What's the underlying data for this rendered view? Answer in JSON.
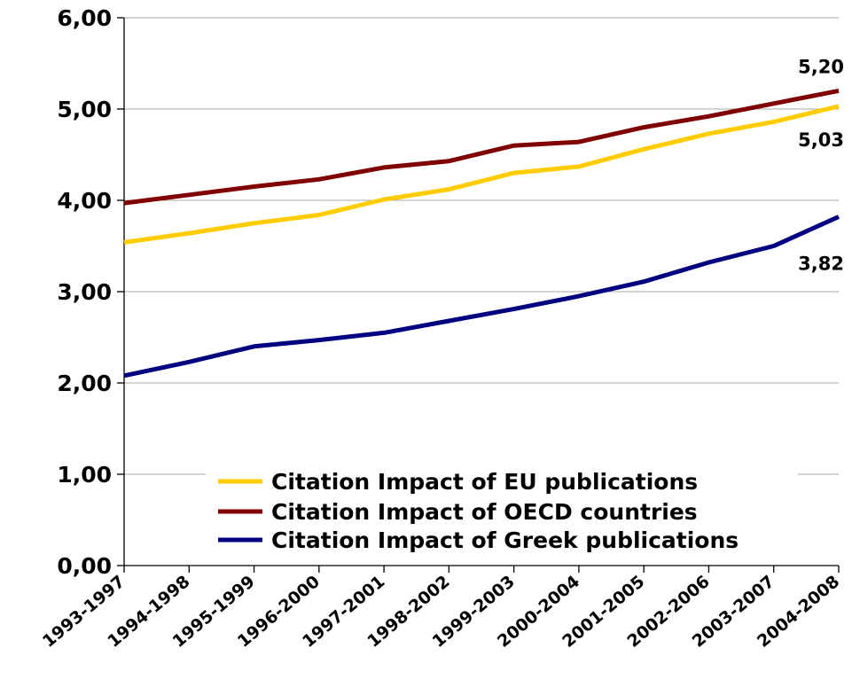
{
  "chart_data": {
    "type": "line",
    "title": "",
    "xlabel": "",
    "ylabel": "",
    "categories": [
      "1993-1997",
      "1994-1998",
      "1995-1999",
      "1996-2000",
      "1997-2001",
      "1998-2002",
      "1999-2003",
      "2000-2004",
      "2001-2005",
      "2002-2006",
      "2003-2007",
      "2004-2008"
    ],
    "ylim": [
      0,
      6
    ],
    "yticks": [
      "0,00",
      "1,00",
      "2,00",
      "3,00",
      "4,00",
      "5,00",
      "6,00"
    ],
    "grid": true,
    "legend_position": "bottom-right",
    "series": [
      {
        "name": "Citation Impact of EU publications",
        "color": "#FFCC00",
        "values": [
          3.54,
          3.64,
          3.75,
          3.84,
          4.01,
          4.12,
          4.3,
          4.37,
          4.56,
          4.73,
          4.86,
          5.03
        ],
        "end_label": "5,03"
      },
      {
        "name": "Citation Impact of OECD countries",
        "color": "#800000",
        "values": [
          3.97,
          4.06,
          4.15,
          4.23,
          4.36,
          4.43,
          4.6,
          4.64,
          4.8,
          4.92,
          5.06,
          5.2
        ],
        "end_label": "5,20"
      },
      {
        "name": "Citation Impact of Greek publications",
        "color": "#000080",
        "values": [
          2.08,
          2.23,
          2.4,
          2.47,
          2.55,
          2.68,
          2.81,
          2.95,
          3.11,
          3.32,
          3.5,
          3.82
        ],
        "end_label": "3,82"
      }
    ]
  }
}
